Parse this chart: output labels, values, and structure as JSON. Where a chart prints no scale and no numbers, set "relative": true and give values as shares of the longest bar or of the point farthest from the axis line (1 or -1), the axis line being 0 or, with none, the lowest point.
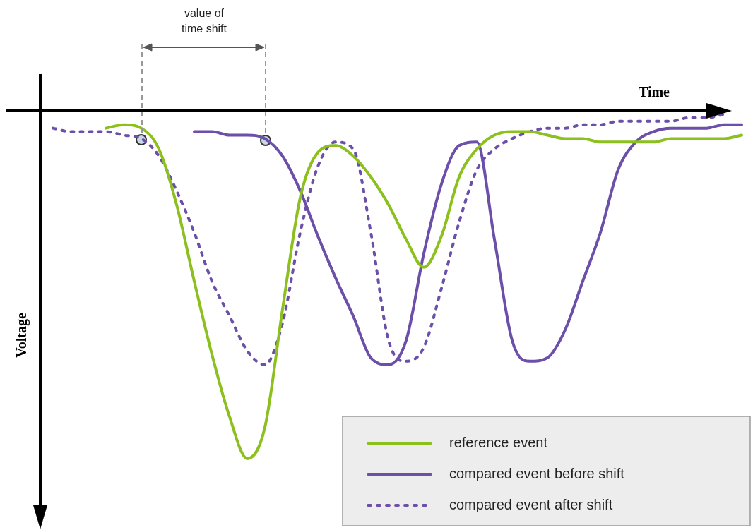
{
  "chart_data": {
    "type": "line",
    "relative": true,
    "xlabel": "Time",
    "ylabel": "Voltage",
    "annotations": [
      "value of time shift"
    ],
    "legend": "bottom right",
    "marker": "none",
    "categories": [
      null,
      null,
      null,
      null,
      null,
      null,
      null,
      null,
      null,
      null,
      null,
      null,
      null,
      null,
      null,
      null,
      null,
      null,
      null,
      null,
      null,
      null,
      null,
      null,
      null,
      null,
      null,
      null,
      null,
      null,
      null,
      null,
      null,
      null,
      null,
      null,
      null,
      null,
      null,
      null
    ],
    "series": [
      {
        "name": "reference event",
        "color": "#8cc01e",
        "line_style": "solid",
        "values": [
          null,
          null,
          null,
          -0.05,
          -0.04,
          -0.05,
          -0.11,
          -0.27,
          -0.49,
          -0.7,
          -0.88,
          -1,
          -0.91,
          -0.57,
          -0.25,
          -0.12,
          -0.1,
          -0.13,
          -0.19,
          -0.27,
          -0.37,
          -0.45,
          -0.36,
          -0.19,
          -0.11,
          -0.07,
          -0.06,
          -0.06,
          -0.07,
          -0.08,
          -0.08,
          -0.09,
          -0.09,
          -0.09,
          -0.09,
          -0.08,
          -0.08,
          -0.08,
          -0.08,
          -0.07
        ]
      },
      {
        "name": "compared event before shift",
        "color": "#6b4fa8",
        "line_style": "solid",
        "values": [
          null,
          null,
          null,
          null,
          null,
          null,
          null,
          null,
          -0.06,
          -0.06,
          -0.07,
          -0.07,
          -0.08,
          -0.13,
          -0.23,
          -0.36,
          -0.48,
          -0.59,
          -0.71,
          -0.73,
          -0.66,
          -0.41,
          -0.21,
          -0.1,
          -0.09,
          -0.37,
          -0.66,
          -0.72,
          -0.71,
          -0.63,
          -0.49,
          -0.35,
          -0.17,
          -0.09,
          -0.06,
          -0.05,
          -0.05,
          -0.05,
          -0.04,
          -0.04
        ]
      },
      {
        "name": "compared event after shift",
        "color": "#6b4fa8",
        "line_style": "dotted",
        "values": [
          -0.05,
          -0.06,
          -0.06,
          -0.06,
          -0.07,
          -0.08,
          -0.13,
          -0.23,
          -0.35,
          -0.49,
          -0.59,
          -0.69,
          -0.73,
          -0.61,
          -0.35,
          -0.16,
          -0.09,
          -0.11,
          -0.35,
          -0.66,
          -0.72,
          -0.68,
          -0.51,
          -0.32,
          -0.17,
          -0.11,
          -0.08,
          -0.06,
          -0.05,
          -0.05,
          -0.04,
          -0.04,
          -0.03,
          -0.03,
          -0.03,
          -0.03,
          -0.02,
          -0.02,
          -0.01,
          null
        ]
      }
    ]
  }
}
